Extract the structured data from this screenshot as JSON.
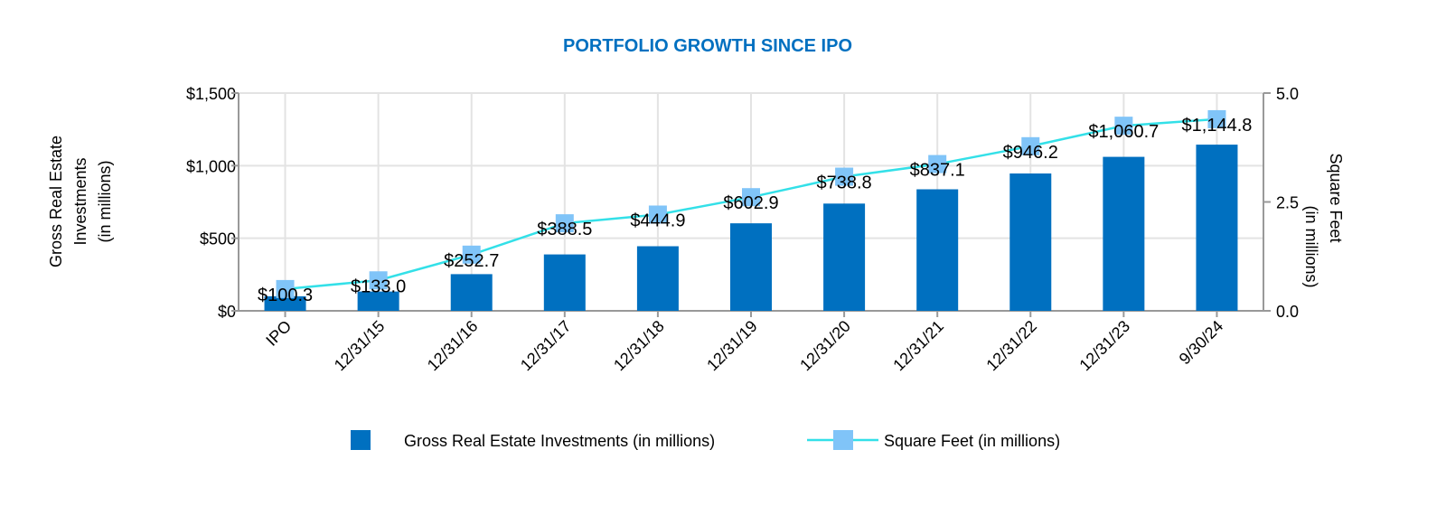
{
  "chart_data": {
    "type": "bar+line",
    "title": "PORTFOLIO GROWTH SINCE IPO",
    "categories": [
      "IPO",
      "12/31/15",
      "12/31/16",
      "12/31/17",
      "12/31/18",
      "12/31/19",
      "12/31/20",
      "12/31/21",
      "12/31/22",
      "12/31/23",
      "9/30/24"
    ],
    "series": [
      {
        "name": "Gross Real Estate Investments (in millions)",
        "type": "bar",
        "axis": "left",
        "color": "#0070C0",
        "values": [
          100.3,
          133.0,
          252.7,
          388.5,
          444.9,
          602.9,
          738.8,
          837.1,
          946.2,
          1060.7,
          1144.8
        ],
        "labels": [
          "$100.3",
          "$133.0",
          "$252.7",
          "$388.5",
          "$444.9",
          "$602.9",
          "$738.8",
          "$837.1",
          "$946.2",
          "$1,060.7",
          "$1,144.8"
        ]
      },
      {
        "name": "Square Feet (in millions)",
        "type": "line",
        "axis": "right",
        "color": "#33E0E8",
        "marker_color": "#80C4F8",
        "values": [
          0.5,
          0.7,
          1.29,
          2.01,
          2.21,
          2.61,
          3.08,
          3.37,
          3.78,
          4.25,
          4.4
        ]
      }
    ],
    "ylabel_left": [
      "Gross Real Estate",
      "Investments",
      "(in millions)"
    ],
    "ylabel_right": [
      "Square Feet",
      "(in millions)"
    ],
    "ylim_left": [
      0,
      1500
    ],
    "ylim_right": [
      0,
      5
    ],
    "yticks_left": [
      "$0",
      "$500",
      "$1,000",
      "$1,500"
    ],
    "yticks_right": [
      "0.0",
      "2.5",
      "5.0"
    ],
    "grid": true,
    "legend_position": "bottom",
    "title_color": "#0070C0"
  }
}
